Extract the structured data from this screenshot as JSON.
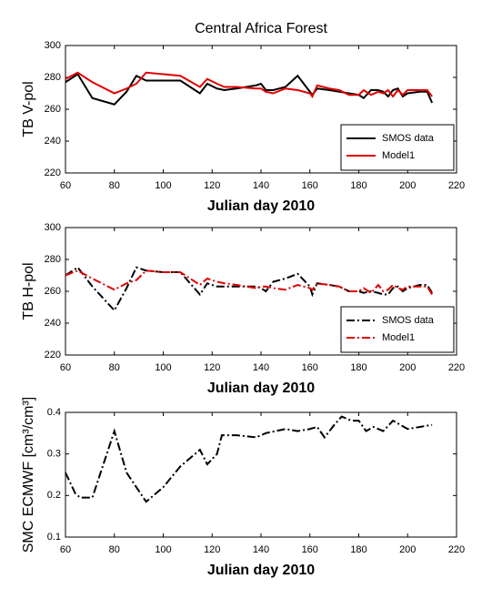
{
  "chart_data": [
    {
      "type": "line",
      "title": "Central Africa Forest",
      "xlabel": "Julian day 2010",
      "ylabel": "TB V-pol",
      "x": [
        60,
        65,
        71,
        80,
        85,
        89,
        93,
        100,
        107,
        115,
        118,
        122,
        125,
        130,
        138,
        140,
        142,
        145,
        150,
        155,
        160,
        161,
        163,
        168,
        172,
        176,
        180,
        182,
        185,
        188,
        190,
        192,
        194,
        196,
        198,
        200,
        205,
        208,
        210
      ],
      "series": [
        {
          "name": "SMOS data",
          "color": "#000000",
          "linestyle": "solid",
          "values": [
            277,
            282,
            267,
            263,
            271,
            281,
            278,
            278,
            278,
            270,
            276,
            273,
            272,
            273,
            275,
            276,
            272,
            272,
            274,
            281,
            271,
            269,
            273,
            272,
            271,
            270,
            269,
            267,
            272,
            272,
            271,
            268,
            272,
            273,
            268,
            270,
            271,
            271,
            264
          ]
        },
        {
          "name": "Model1",
          "color": "#e00000",
          "linestyle": "solid",
          "values": [
            279,
            283,
            277,
            270,
            273,
            276,
            283,
            282,
            281,
            274,
            279,
            276,
            274,
            274,
            273,
            273,
            271,
            270,
            273,
            272,
            270,
            268,
            275,
            273,
            272,
            269,
            269,
            272,
            269,
            271,
            270,
            272,
            268,
            272,
            269,
            272,
            272,
            272,
            268
          ]
        }
      ],
      "xlim": [
        60,
        220
      ],
      "xticks": [
        60,
        80,
        100,
        120,
        140,
        160,
        180,
        200,
        220
      ],
      "ylim": [
        220,
        300
      ],
      "yticks": [
        220,
        240,
        260,
        280,
        300
      ],
      "legend": "lower right"
    },
    {
      "type": "line",
      "xlabel": "Julian day 2010",
      "ylabel": "TB H-pol",
      "x": [
        60,
        65,
        71,
        80,
        85,
        89,
        93,
        100,
        107,
        115,
        118,
        122,
        125,
        130,
        138,
        140,
        142,
        145,
        150,
        155,
        160,
        161,
        163,
        168,
        172,
        176,
        180,
        182,
        185,
        188,
        190,
        192,
        194,
        196,
        198,
        200,
        205,
        208,
        210
      ],
      "series": [
        {
          "name": "SMOS data",
          "color": "#000000",
          "linestyle": "dashdot",
          "values": [
            270,
            275,
            263,
            248,
            262,
            275,
            273,
            272,
            272,
            258,
            265,
            263,
            263,
            263,
            263,
            262,
            260,
            266,
            268,
            271,
            263,
            258,
            265,
            264,
            263,
            260,
            260,
            259,
            260,
            259,
            258,
            258,
            262,
            263,
            260,
            262,
            264,
            264,
            259
          ]
        },
        {
          "name": "Model1",
          "color": "#e00000",
          "linestyle": "dashdot",
          "values": [
            270,
            273,
            268,
            261,
            265,
            267,
            273,
            272,
            272,
            264,
            268,
            266,
            265,
            264,
            262,
            263,
            263,
            262,
            261,
            264,
            262,
            261,
            265,
            264,
            263,
            260,
            260,
            262,
            259,
            264,
            260,
            261,
            264,
            262,
            261,
            263,
            263,
            263,
            258
          ]
        }
      ],
      "xlim": [
        60,
        220
      ],
      "xticks": [
        60,
        80,
        100,
        120,
        140,
        160,
        180,
        200,
        220
      ],
      "ylim": [
        220,
        300
      ],
      "yticks": [
        220,
        240,
        260,
        280,
        300
      ],
      "legend": "lower right"
    },
    {
      "type": "line",
      "xlabel": "Julian day 2010",
      "ylabel": "SMC ECMWF [cm³/cm³]",
      "x": [
        60,
        64,
        66,
        71,
        80,
        85,
        93,
        100,
        107,
        115,
        118,
        122,
        124,
        130,
        138,
        142,
        150,
        155,
        160,
        163,
        166,
        170,
        173,
        177,
        180,
        183,
        186,
        190,
        194,
        197,
        200,
        205,
        210
      ],
      "series": [
        {
          "color": "#000000",
          "linestyle": "dashdot",
          "values": [
            0.255,
            0.205,
            0.195,
            0.195,
            0.355,
            0.255,
            0.185,
            0.22,
            0.27,
            0.31,
            0.275,
            0.3,
            0.345,
            0.345,
            0.34,
            0.35,
            0.36,
            0.355,
            0.36,
            0.365,
            0.34,
            0.37,
            0.39,
            0.38,
            0.38,
            0.355,
            0.365,
            0.355,
            0.38,
            0.37,
            0.36,
            0.365,
            0.37
          ]
        }
      ],
      "xlim": [
        60,
        220
      ],
      "xticks": [
        60,
        80,
        100,
        120,
        140,
        160,
        180,
        200,
        220
      ],
      "ylim": [
        0.1,
        0.4
      ],
      "yticks": [
        0.1,
        0.2,
        0.3,
        0.4
      ]
    }
  ]
}
